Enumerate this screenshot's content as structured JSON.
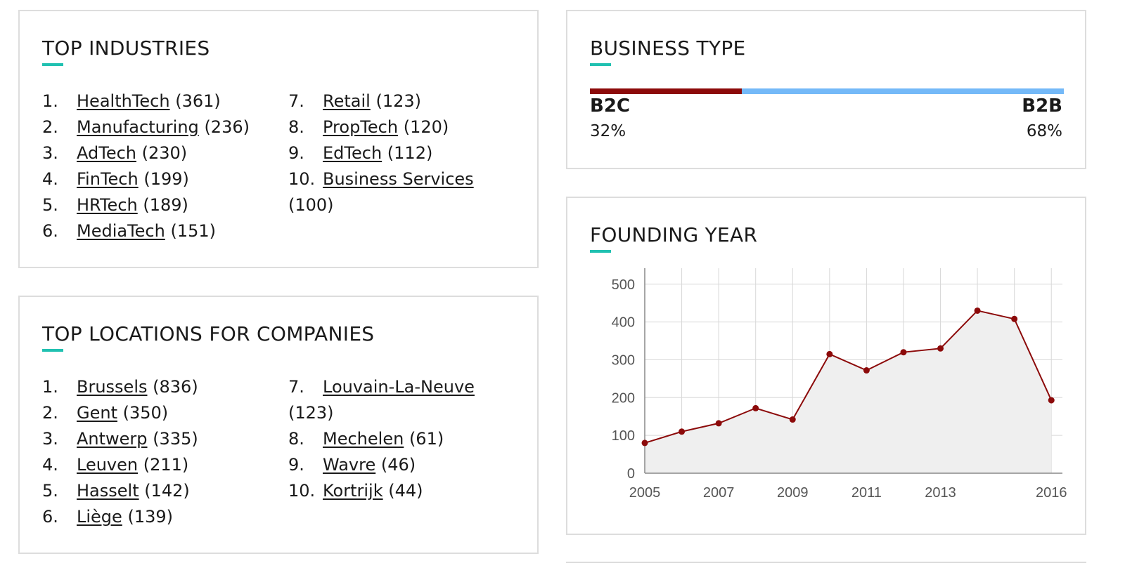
{
  "industries": {
    "title": "TOP INDUSTRIES",
    "items": [
      {
        "num": "1.",
        "name": "HealthTech",
        "count": "(361)"
      },
      {
        "num": "2.",
        "name": "Manufacturing",
        "count": "(236)"
      },
      {
        "num": "3.",
        "name": "AdTech",
        "count": "(230)"
      },
      {
        "num": "4.",
        "name": "FinTech",
        "count": "(199)"
      },
      {
        "num": "5.",
        "name": "HRTech",
        "count": "(189)"
      },
      {
        "num": "6.",
        "name": "MediaTech",
        "count": "(151)"
      },
      {
        "num": "7.",
        "name": "Retail",
        "count": "(123)"
      },
      {
        "num": "8.",
        "name": "PropTech",
        "count": "(120)"
      },
      {
        "num": "9.",
        "name": "EdTech",
        "count": "(112)"
      },
      {
        "num": "10.",
        "name": "Business Services",
        "count": "(100)"
      }
    ]
  },
  "locations": {
    "title": "TOP LOCATIONS FOR COMPANIES",
    "items": [
      {
        "num": "1.",
        "name": "Brussels",
        "count": "(836)"
      },
      {
        "num": "2.",
        "name": "Gent",
        "count": "(350)"
      },
      {
        "num": "3.",
        "name": "Antwerp",
        "count": "(335)"
      },
      {
        "num": "4.",
        "name": "Leuven",
        "count": "(211)"
      },
      {
        "num": "5.",
        "name": "Hasselt",
        "count": "(142)"
      },
      {
        "num": "6.",
        "name": "Liège",
        "count": "(139)"
      },
      {
        "num": "7.",
        "name": "Louvain-La-Neuve",
        "count": "(123)"
      },
      {
        "num": "8.",
        "name": "Mechelen",
        "count": "(61)"
      },
      {
        "num": "9.",
        "name": "Wavre",
        "count": "(46)"
      },
      {
        "num": "10.",
        "name": "Kortrijk",
        "count": "(44)"
      }
    ]
  },
  "business": {
    "title": "BUSINESS TYPE",
    "b2c_label": "B2C",
    "b2c_pct": "32%",
    "b2c_share": 0.32,
    "b2b_label": "B2B",
    "b2b_pct": "68%",
    "colors": {
      "b2c": "#8c0a0a",
      "b2b": "#74b9f8"
    }
  },
  "founding": {
    "title": "FOUNDING YEAR"
  },
  "chart_data": {
    "type": "area",
    "title": "FOUNDING YEAR",
    "xlabel": "",
    "ylabel": "",
    "x": [
      2005,
      2006,
      2007,
      2008,
      2009,
      2010,
      2011,
      2012,
      2013,
      2014,
      2015,
      2016
    ],
    "series": [
      {
        "values": [
          80,
          110,
          132,
          172,
          142,
          315,
          272,
          320,
          330,
          430,
          408,
          193
        ]
      }
    ],
    "xticks": [
      2005,
      2007,
      2009,
      2011,
      2013,
      2016
    ],
    "yticks": [
      0,
      100,
      200,
      300,
      400,
      500
    ],
    "xlim": [
      2005,
      2016.3
    ],
    "ylim": [
      0,
      520
    ],
    "grid": true,
    "colors": {
      "line": "#8c0a0a",
      "fill": "#efefef",
      "grid": "#d8d8d8"
    }
  }
}
